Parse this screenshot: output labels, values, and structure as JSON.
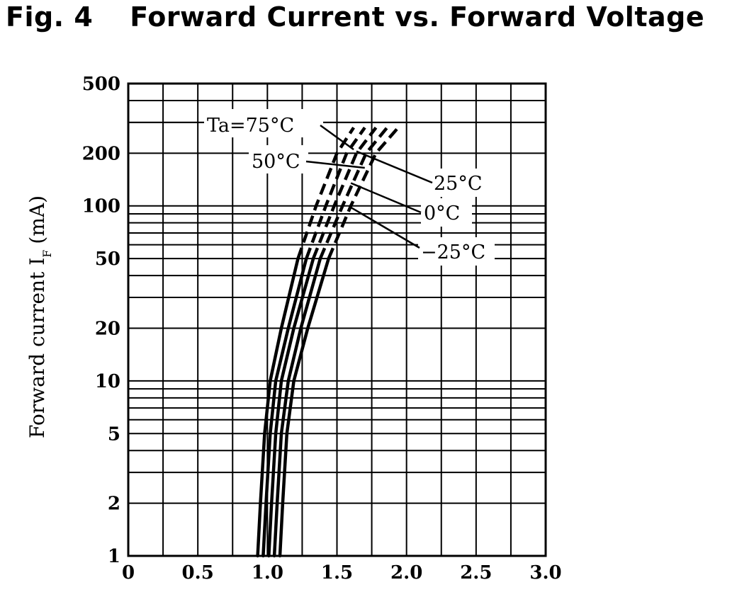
{
  "title_prefix": "Fig. 4",
  "title_text": "Forward Current vs. Forward Voltage",
  "chart_data": {
    "type": "line",
    "title": "Forward Current vs. Forward Voltage",
    "xlabel": "",
    "ylabel": "Forward current I_F (mA)",
    "ylabel_main": "Forward current I",
    "ylabel_sub": "F",
    "ylabel_unit": "(mA)",
    "xlim": [
      0,
      3.0
    ],
    "ylim": [
      1,
      500
    ],
    "yscale": "log",
    "grid": true,
    "x_ticks": [
      0,
      0.5,
      1.0,
      1.5,
      2.0,
      2.5,
      3.0
    ],
    "x_tick_labels": [
      "0",
      "0.5",
      "1.0",
      "1.5",
      "2.0",
      "2.5",
      "3.0"
    ],
    "y_ticks": [
      1,
      2,
      5,
      10,
      20,
      50,
      100,
      200,
      500
    ],
    "y_tick_labels": [
      "1",
      "2",
      "5",
      "10",
      "20",
      "50",
      "100",
      "200",
      "500"
    ],
    "series": [
      {
        "label": "Ta=75°C",
        "solid": [
          [
            0.93,
            1
          ],
          [
            0.95,
            2
          ],
          [
            0.98,
            5
          ],
          [
            1.02,
            10
          ],
          [
            1.1,
            20
          ],
          [
            1.22,
            50
          ]
        ],
        "dashed": [
          [
            1.22,
            50
          ],
          [
            1.35,
            100
          ],
          [
            1.5,
            200
          ],
          [
            1.62,
            280
          ]
        ]
      },
      {
        "label": "50°C",
        "solid": [
          [
            0.97,
            1
          ],
          [
            0.99,
            2
          ],
          [
            1.02,
            5
          ],
          [
            1.06,
            10
          ],
          [
            1.15,
            20
          ],
          [
            1.28,
            50
          ]
        ],
        "dashed": [
          [
            1.28,
            50
          ],
          [
            1.42,
            100
          ],
          [
            1.57,
            200
          ],
          [
            1.7,
            280
          ]
        ]
      },
      {
        "label": "25°C",
        "solid": [
          [
            1.01,
            1
          ],
          [
            1.03,
            2
          ],
          [
            1.06,
            5
          ],
          [
            1.1,
            10
          ],
          [
            1.19,
            20
          ],
          [
            1.33,
            50
          ]
        ],
        "dashed": [
          [
            1.33,
            50
          ],
          [
            1.48,
            100
          ],
          [
            1.64,
            200
          ],
          [
            1.78,
            280
          ]
        ]
      },
      {
        "label": "0°C",
        "solid": [
          [
            1.05,
            1
          ],
          [
            1.07,
            2
          ],
          [
            1.1,
            5
          ],
          [
            1.15,
            10
          ],
          [
            1.24,
            20
          ],
          [
            1.38,
            50
          ]
        ],
        "dashed": [
          [
            1.38,
            50
          ],
          [
            1.54,
            100
          ],
          [
            1.71,
            200
          ],
          [
            1.86,
            280
          ]
        ]
      },
      {
        "label": "−25°C",
        "solid": [
          [
            1.09,
            1
          ],
          [
            1.11,
            2
          ],
          [
            1.14,
            5
          ],
          [
            1.19,
            10
          ],
          [
            1.29,
            20
          ],
          [
            1.44,
            50
          ]
        ],
        "dashed": [
          [
            1.44,
            50
          ],
          [
            1.6,
            100
          ],
          [
            1.78,
            200
          ],
          [
            1.94,
            280
          ]
        ]
      }
    ],
    "annotations": [
      {
        "text": "Ta=75°C",
        "ref_series": 0
      },
      {
        "text": "50°C",
        "ref_series": 1
      },
      {
        "text": "25°C",
        "ref_series": 2
      },
      {
        "text": "0°C",
        "ref_series": 3
      },
      {
        "text": "−25°C",
        "ref_series": 4
      }
    ]
  }
}
